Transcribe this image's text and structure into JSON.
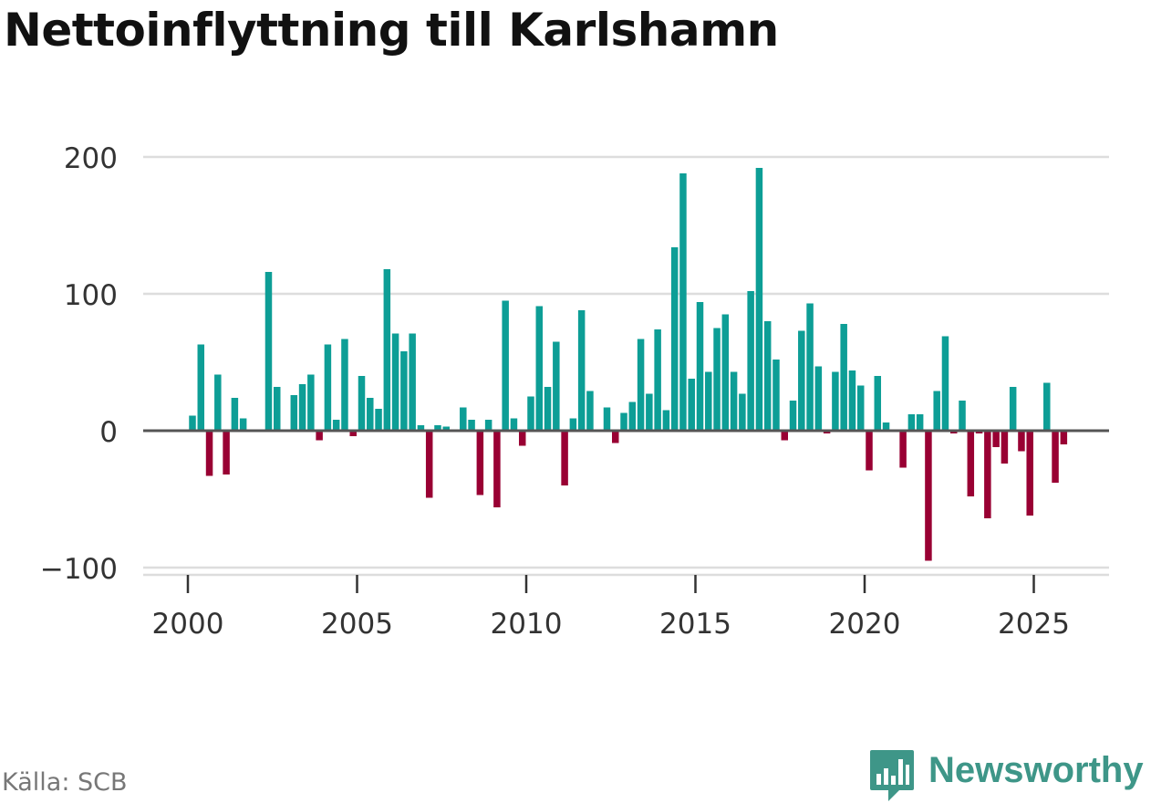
{
  "title": "Nettoinflyttning till Karlshamn",
  "source": "Källa: SCB",
  "logo": {
    "name": "Newsworthy",
    "icon": "bar-chart-speech-bubble-icon"
  },
  "colors": {
    "positive": "#0d9e96",
    "negative": "#990033",
    "zero_line": "#555555",
    "grid": "#dddddd",
    "text": "#333333",
    "brand": "#3e9688"
  },
  "chart_data": {
    "type": "bar",
    "title": "Nettoinflyttning till Karlshamn",
    "xlabel": "",
    "ylabel": "",
    "ylim": [
      -100,
      200
    ],
    "xlim": [
      2000,
      2027
    ],
    "yticks": [
      -100,
      0,
      100,
      200
    ],
    "ytick_labels": [
      "−100",
      "0",
      "100",
      "200"
    ],
    "xticks": [
      2000,
      2005,
      2010,
      2015,
      2020,
      2025
    ],
    "xtick_labels": [
      "2000",
      "2005",
      "2010",
      "2015",
      "2020",
      "2025"
    ],
    "grid": true,
    "legend": "none",
    "frequency": "quarterly",
    "start": "2000 Q1",
    "values": [
      11,
      63,
      -33,
      41,
      -32,
      24,
      9,
      0,
      0,
      116,
      32,
      0,
      26,
      34,
      41,
      -7,
      63,
      8,
      67,
      -4,
      40,
      24,
      16,
      118,
      71,
      58,
      71,
      4,
      -49,
      4,
      3,
      1,
      17,
      8,
      -47,
      8,
      -56,
      95,
      9,
      -11,
      25,
      91,
      32,
      65,
      -40,
      9,
      88,
      29,
      1,
      17,
      -9,
      13,
      21,
      67,
      27,
      74,
      15,
      134,
      188,
      38,
      94,
      43,
      75,
      85,
      43,
      27,
      102,
      192,
      80,
      52,
      -7,
      22,
      73,
      93,
      47,
      -2,
      43,
      78,
      44,
      33,
      -29,
      40,
      6,
      -1,
      -27,
      12,
      12,
      -95,
      29,
      69,
      -2,
      22,
      -48,
      -2,
      -64,
      -12,
      -24,
      32,
      -15,
      -62,
      0,
      35,
      -38,
      -10
    ]
  }
}
